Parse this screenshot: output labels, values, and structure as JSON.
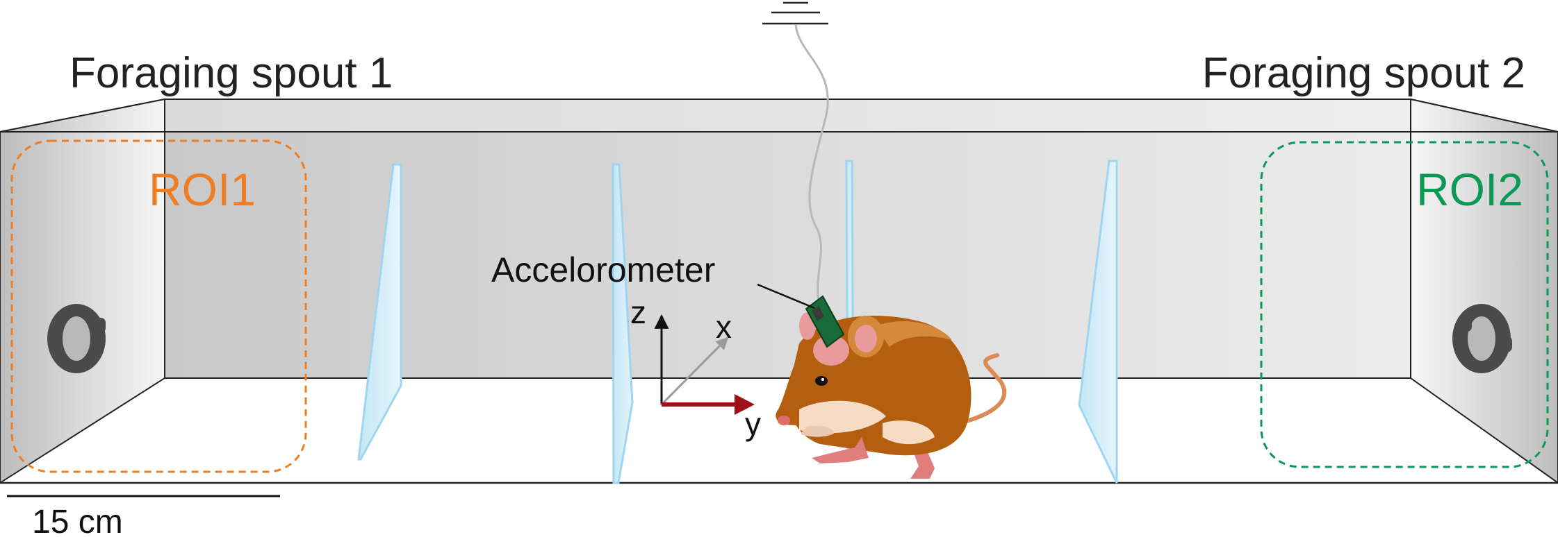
{
  "labels": {
    "spout1": "Foraging spout 1",
    "spout2": "Foraging spout 2",
    "roi1": "ROI1",
    "roi2": "ROI2",
    "accelerometer": "Accelorometer",
    "axis_z": "z",
    "axis_x": "x",
    "axis_y": "y",
    "scale_bar": "15 cm"
  },
  "colors": {
    "roi1": "#ee7d24",
    "roi2": "#0a9a55",
    "y_axis": "#a01018",
    "x_axis": "#9a9a9a",
    "barrier": "#9fd6ee",
    "mouse_body": "#b45f10",
    "accelerometer": "#1a6b3a"
  }
}
